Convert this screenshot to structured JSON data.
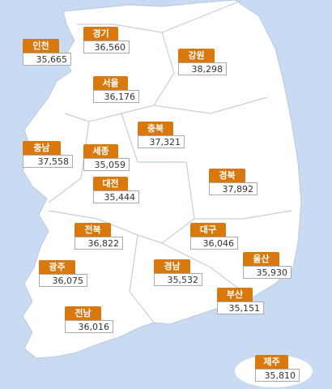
{
  "regions": [
    {
      "name": "인천",
      "value": "35,665"
    },
    {
      "name": "경기",
      "value": "36,560"
    },
    {
      "name": "강원",
      "value": "38,298"
    },
    {
      "name": "서울",
      "value": "36,176"
    },
    {
      "name": "충북",
      "value": "37,321"
    },
    {
      "name": "충남",
      "value": "37,558"
    },
    {
      "name": "세종",
      "value": "35,059"
    },
    {
      "name": "대전",
      "value": "35,444"
    },
    {
      "name": "경북",
      "value": "37,892"
    },
    {
      "name": "전북",
      "value": "36,822"
    },
    {
      "name": "대구",
      "value": "36,046"
    },
    {
      "name": "울산",
      "value": "35,930"
    },
    {
      "name": "광주",
      "value": "36,075"
    },
    {
      "name": "경남",
      "value": "35,532"
    },
    {
      "name": "부산",
      "value": "35,151"
    },
    {
      "name": "전남",
      "value": "36,016"
    },
    {
      "name": "제주",
      "value": "35,810"
    }
  ]
}
